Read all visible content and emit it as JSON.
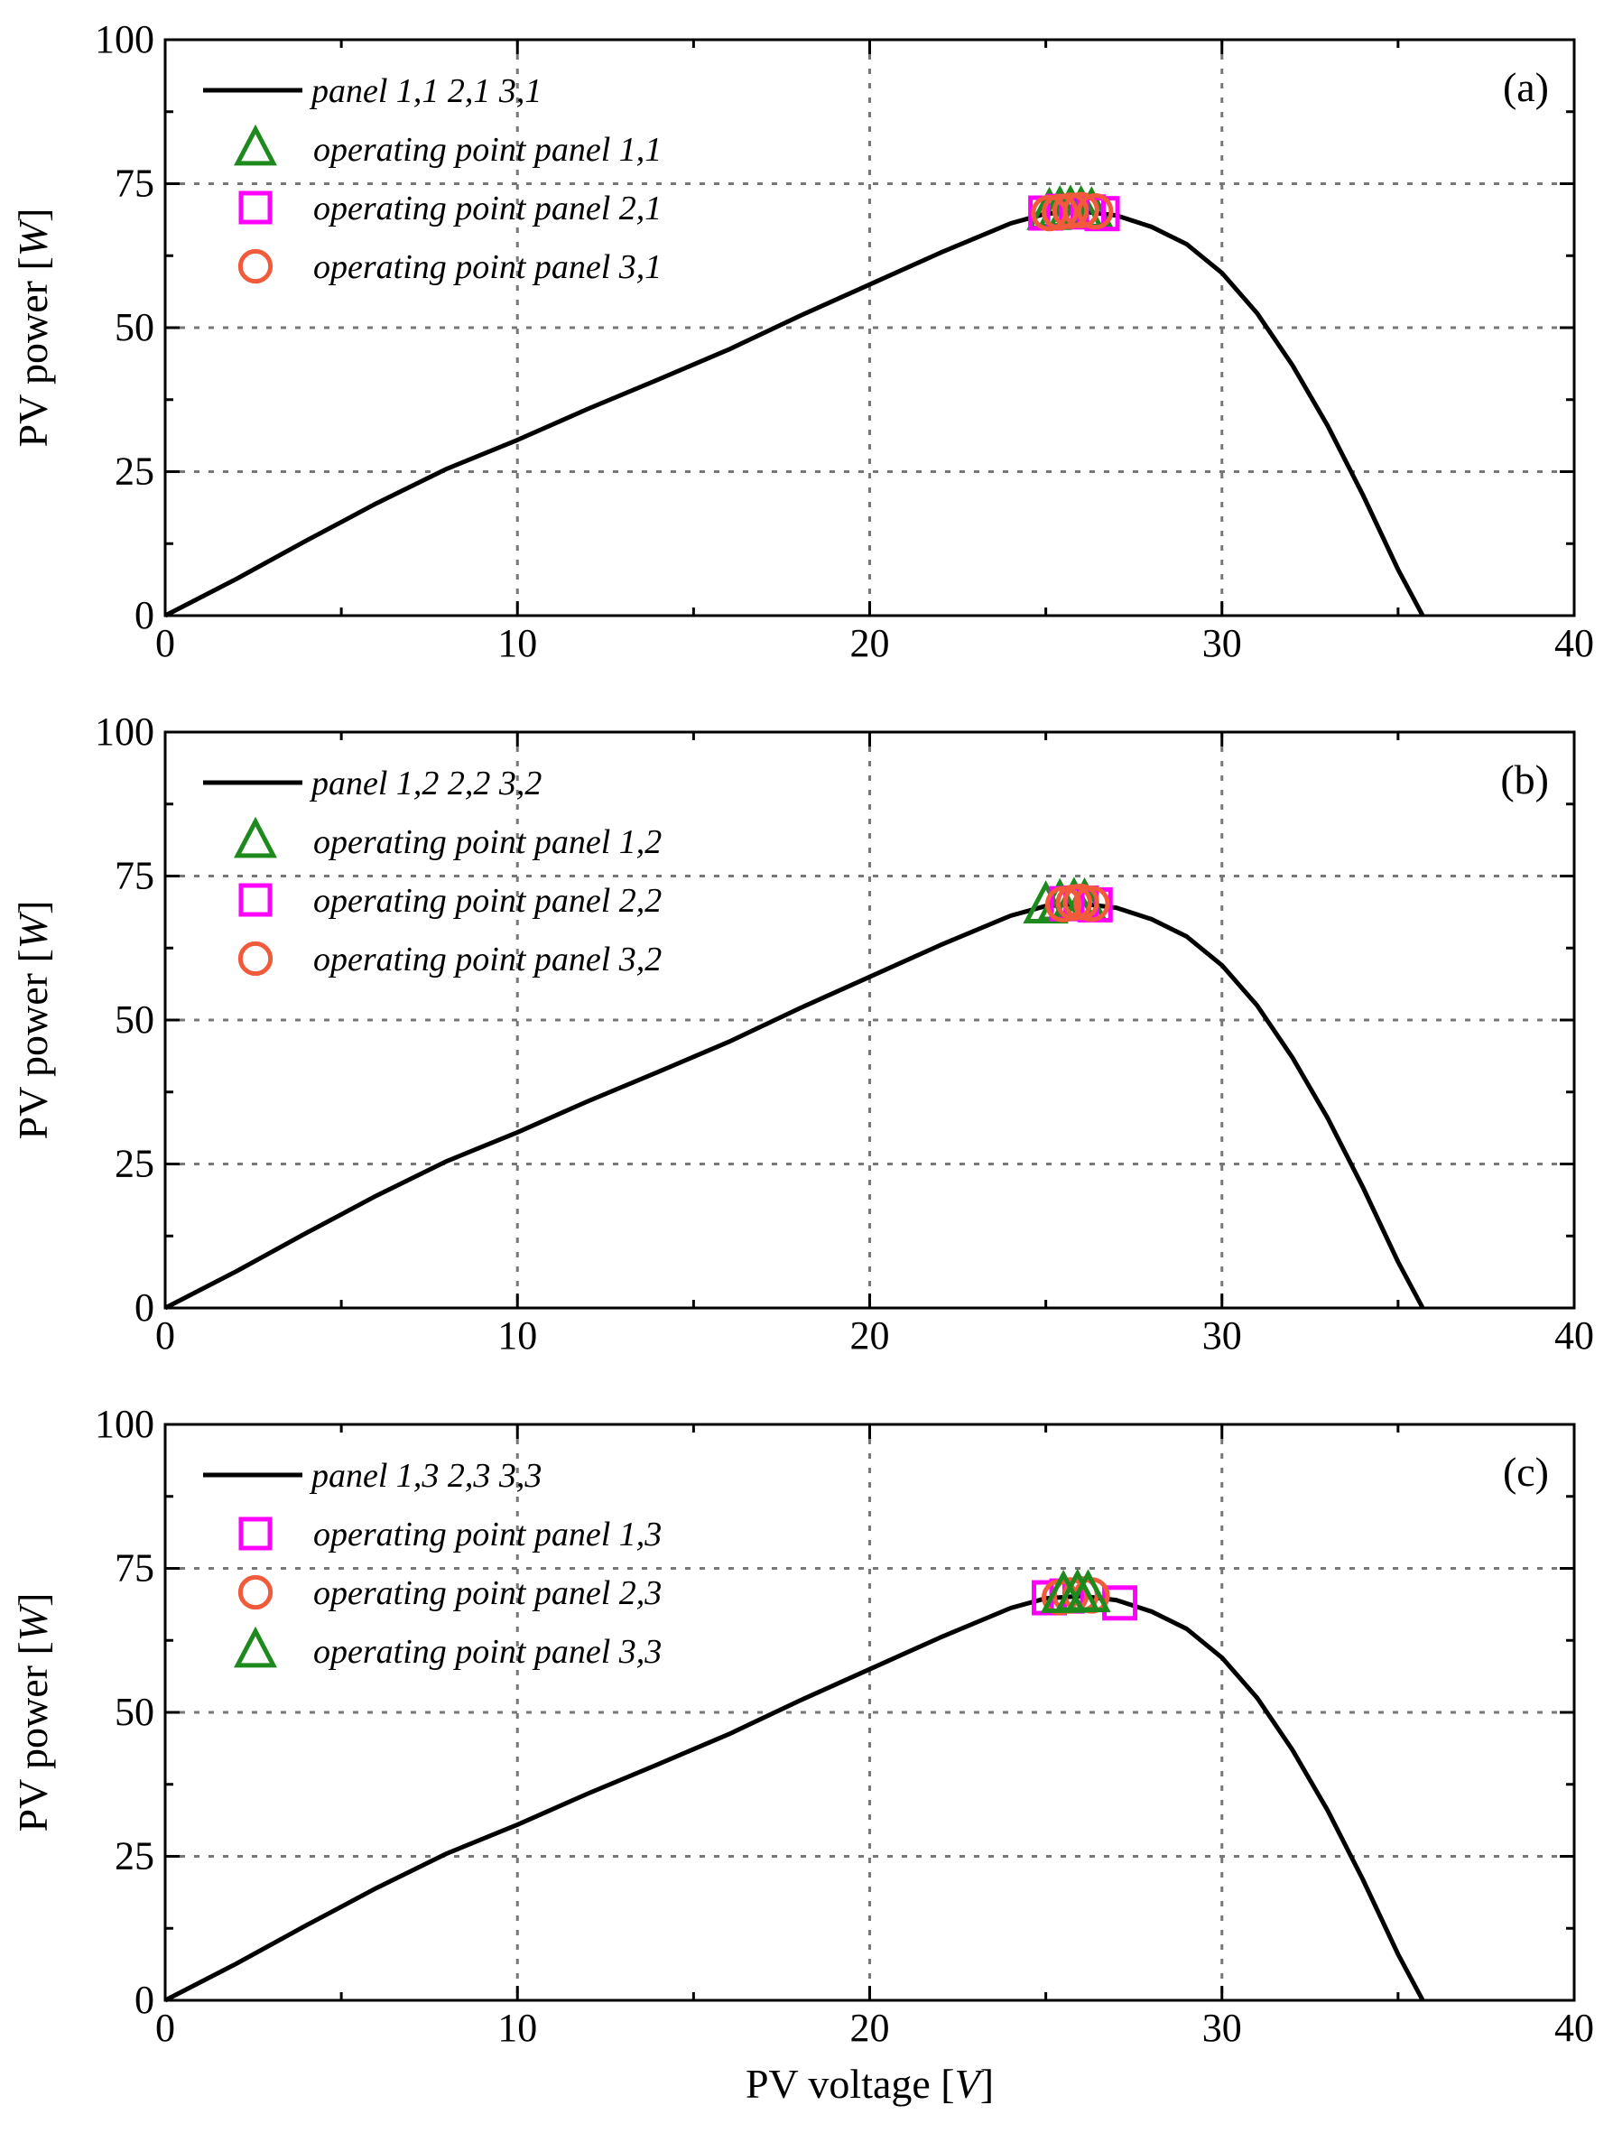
{
  "chart_data": [
    {
      "type": "line",
      "panel_label": "(a)",
      "xlabel": "",
      "ylabel": "PV power [W]",
      "xlim": [
        0,
        40
      ],
      "ylim": [
        0,
        100
      ],
      "xticks": [
        0,
        10,
        20,
        30,
        40
      ],
      "yticks": [
        0,
        25,
        50,
        75,
        100
      ],
      "grid": true,
      "legend_position": "top-left",
      "curve": {
        "name": "panel 1,1  2,1  3,1",
        "color": "#000000",
        "x": [
          0,
          2,
          4,
          6,
          8,
          10,
          12,
          14,
          16,
          18,
          20,
          22,
          24,
          25,
          26,
          27,
          28,
          29,
          30,
          31,
          32,
          33,
          34,
          35,
          35.7
        ],
        "y": [
          0,
          6.3,
          13,
          19.5,
          25.5,
          30.5,
          35.9,
          41,
          46.2,
          52,
          57.5,
          63,
          68.1,
          69.8,
          70.2,
          69.5,
          67.5,
          64.5,
          59.5,
          52.5,
          43.5,
          33,
          21,
          8,
          0
        ]
      },
      "series": [
        {
          "name": "operating point panel 1,1",
          "marker": "triangle",
          "color": "#1e8a1e",
          "points": [
            [
              25.1,
              70.0
            ],
            [
              25.4,
              70.3
            ],
            [
              25.7,
              70.4
            ],
            [
              26.0,
              70.3
            ],
            [
              26.3,
              70.1
            ]
          ]
        },
        {
          "name": "operating point panel 2,1",
          "marker": "square",
          "color": "#ff00ff",
          "points": [
            [
              25.0,
              69.9
            ],
            [
              25.5,
              70.2
            ],
            [
              26.2,
              70.1
            ],
            [
              26.6,
              69.8
            ]
          ]
        },
        {
          "name": "operating point panel 3,1",
          "marker": "circle",
          "color": "#f15a3a",
          "points": [
            [
              25.1,
              69.9
            ],
            [
              25.4,
              70.1
            ],
            [
              25.7,
              70.3
            ],
            [
              26.0,
              70.4
            ],
            [
              26.4,
              70.2
            ]
          ]
        }
      ]
    },
    {
      "type": "line",
      "panel_label": "(b)",
      "xlabel": "",
      "ylabel": "PV power [W]",
      "xlim": [
        0,
        40
      ],
      "ylim": [
        0,
        100
      ],
      "xticks": [
        0,
        10,
        20,
        30,
        40
      ],
      "yticks": [
        0,
        25,
        50,
        75,
        100
      ],
      "grid": true,
      "legend_position": "top-left",
      "curve": {
        "name": "panel 1,2  2,2  3,2",
        "color": "#000000",
        "x": [
          0,
          2,
          4,
          6,
          8,
          10,
          12,
          14,
          16,
          18,
          20,
          22,
          24,
          25,
          26,
          27,
          28,
          29,
          30,
          31,
          32,
          33,
          34,
          35,
          35.7
        ],
        "y": [
          0,
          6.3,
          13,
          19.5,
          25.5,
          30.5,
          35.9,
          41,
          46.2,
          52,
          57.5,
          63,
          68.1,
          69.8,
          70.2,
          69.5,
          67.5,
          64.5,
          59.5,
          52.5,
          43.5,
          33,
          21,
          8,
          0
        ]
      },
      "series": [
        {
          "name": "operating point panel 1,2",
          "marker": "triangle",
          "color": "#1e8a1e",
          "points": [
            [
              25.0,
              69.8
            ],
            [
              25.4,
              70.2
            ],
            [
              25.8,
              70.4
            ],
            [
              26.1,
              70.3
            ]
          ]
        },
        {
          "name": "operating point panel 2,2",
          "marker": "square",
          "color": "#ff00ff",
          "points": [
            [
              25.6,
              70.2
            ],
            [
              26.0,
              70.3
            ],
            [
              26.4,
              70.0
            ]
          ]
        },
        {
          "name": "operating point panel 3,2",
          "marker": "circle",
          "color": "#f15a3a",
          "points": [
            [
              25.5,
              70.1
            ],
            [
              25.8,
              70.4
            ],
            [
              26.0,
              70.5
            ],
            [
              26.3,
              70.2
            ]
          ]
        }
      ]
    },
    {
      "type": "line",
      "panel_label": "(c)",
      "xlabel": "PV voltage [V]",
      "ylabel": "PV power [W]",
      "xlim": [
        0,
        40
      ],
      "ylim": [
        0,
        100
      ],
      "xticks": [
        0,
        10,
        20,
        30,
        40
      ],
      "yticks": [
        0,
        25,
        50,
        75,
        100
      ],
      "grid": true,
      "legend_position": "top-left",
      "curve": {
        "name": "panel 1,3  2,3  3,3",
        "color": "#000000",
        "x": [
          0,
          2,
          4,
          6,
          8,
          10,
          12,
          14,
          16,
          18,
          20,
          22,
          24,
          25,
          26,
          27,
          28,
          29,
          30,
          31,
          32,
          33,
          34,
          35,
          35.7
        ],
        "y": [
          0,
          6.3,
          13,
          19.5,
          25.5,
          30.5,
          35.9,
          41,
          46.2,
          52,
          57.5,
          63,
          68.1,
          69.8,
          70.2,
          69.5,
          67.5,
          64.5,
          59.5,
          52.5,
          43.5,
          33,
          21,
          8,
          0
        ]
      },
      "series": [
        {
          "name": "operating point panel 1,3",
          "marker": "square",
          "color": "#ff00ff",
          "points": [
            [
              25.1,
              69.9
            ],
            [
              25.6,
              70.2
            ],
            [
              27.1,
              69.0
            ]
          ]
        },
        {
          "name": "operating point panel 2,3",
          "marker": "circle",
          "color": "#f15a3a",
          "points": [
            [
              25.4,
              70.0
            ],
            [
              25.7,
              70.3
            ],
            [
              26.0,
              70.5
            ],
            [
              26.3,
              70.3
            ]
          ]
        },
        {
          "name": "operating point panel 3,3",
          "marker": "triangle",
          "color": "#1e8a1e",
          "points": [
            [
              25.5,
              70.3
            ],
            [
              25.9,
              70.5
            ],
            [
              26.2,
              70.4
            ]
          ]
        }
      ]
    }
  ]
}
